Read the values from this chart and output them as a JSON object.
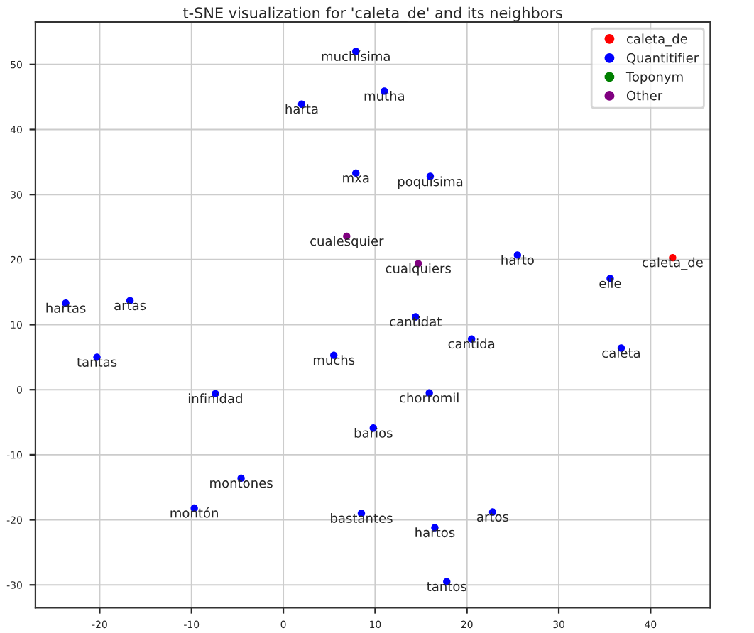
{
  "chart_data": {
    "type": "scatter",
    "title": "t-SNE visualization for 'caleta_de' and its neighbors",
    "xlim": [
      -27,
      46.5
    ],
    "xticks": [
      -20,
      -10,
      0,
      10,
      20,
      30,
      40
    ],
    "ylim": [
      -33.5,
      56.5
    ],
    "yticks": [
      -30,
      -20,
      -10,
      0,
      10,
      20,
      30,
      40,
      50
    ],
    "grid": true,
    "legend": "top right",
    "marker": "circle",
    "series": [
      {
        "name": "caleta_de",
        "color": "#ff0000",
        "x": [
          42.4
        ],
        "values": [
          20.3
        ]
      },
      {
        "name": "Quantitifier",
        "color": "#0000ff",
        "x": [
          7.9,
          11.0,
          2.0,
          7.9,
          16.0,
          25.5,
          35.6,
          -23.7,
          -16.7,
          14.4,
          -20.3,
          20.5,
          36.8,
          5.5,
          -7.4,
          15.9,
          9.8,
          -4.6,
          -9.7,
          8.5,
          22.8,
          16.5,
          17.8
        ],
        "values": [
          52.0,
          45.9,
          43.9,
          33.3,
          32.8,
          20.7,
          17.1,
          13.3,
          13.7,
          11.2,
          5.0,
          7.8,
          6.4,
          5.3,
          -0.6,
          -0.5,
          -5.9,
          -13.6,
          -18.2,
          -19.0,
          -18.8,
          -21.2,
          -29.5
        ]
      },
      {
        "name": "Toponym",
        "color": "#008000"
      },
      {
        "name": "Other",
        "color": "#800080",
        "x": [
          6.9,
          14.7
        ],
        "values": [
          23.6,
          19.4
        ]
      }
    ],
    "annotations": [
      {
        "text": "caleta_de",
        "x": 42.4,
        "y": 20.3
      },
      {
        "text": "muchísima",
        "x": 7.9,
        "y": 52.0
      },
      {
        "text": "mutha",
        "x": 11.0,
        "y": 45.9
      },
      {
        "text": "harta",
        "x": 2.0,
        "y": 43.9
      },
      {
        "text": "mxa",
        "x": 7.9,
        "y": 33.3
      },
      {
        "text": "poquísima",
        "x": 16.0,
        "y": 32.8
      },
      {
        "text": "harto",
        "x": 25.5,
        "y": 20.7
      },
      {
        "text": "elle",
        "x": 35.6,
        "y": 17.1
      },
      {
        "text": "hartas",
        "x": -23.7,
        "y": 13.3
      },
      {
        "text": "artas",
        "x": -16.7,
        "y": 13.7
      },
      {
        "text": "cantidat",
        "x": 14.4,
        "y": 11.2
      },
      {
        "text": "tantas",
        "x": -20.3,
        "y": 5.0
      },
      {
        "text": "cantida",
        "x": 20.5,
        "y": 7.8
      },
      {
        "text": "caleta",
        "x": 36.8,
        "y": 6.4
      },
      {
        "text": "muchs",
        "x": 5.5,
        "y": 5.3
      },
      {
        "text": "infinidad",
        "x": -7.4,
        "y": -0.6
      },
      {
        "text": "chorromil",
        "x": 15.9,
        "y": -0.5
      },
      {
        "text": "barios",
        "x": 9.8,
        "y": -5.9
      },
      {
        "text": "montones",
        "x": -4.6,
        "y": -13.6
      },
      {
        "text": "montón",
        "x": -9.7,
        "y": -18.2
      },
      {
        "text": "bastantes",
        "x": 8.5,
        "y": -19.0
      },
      {
        "text": "artos",
        "x": 22.8,
        "y": -18.8
      },
      {
        "text": "hartos",
        "x": 16.5,
        "y": -21.2
      },
      {
        "text": "tantos",
        "x": 17.8,
        "y": -29.5
      },
      {
        "text": "cualesquier",
        "x": 6.9,
        "y": 23.6
      },
      {
        "text": "cualquiers",
        "x": 14.7,
        "y": 19.4
      }
    ]
  }
}
